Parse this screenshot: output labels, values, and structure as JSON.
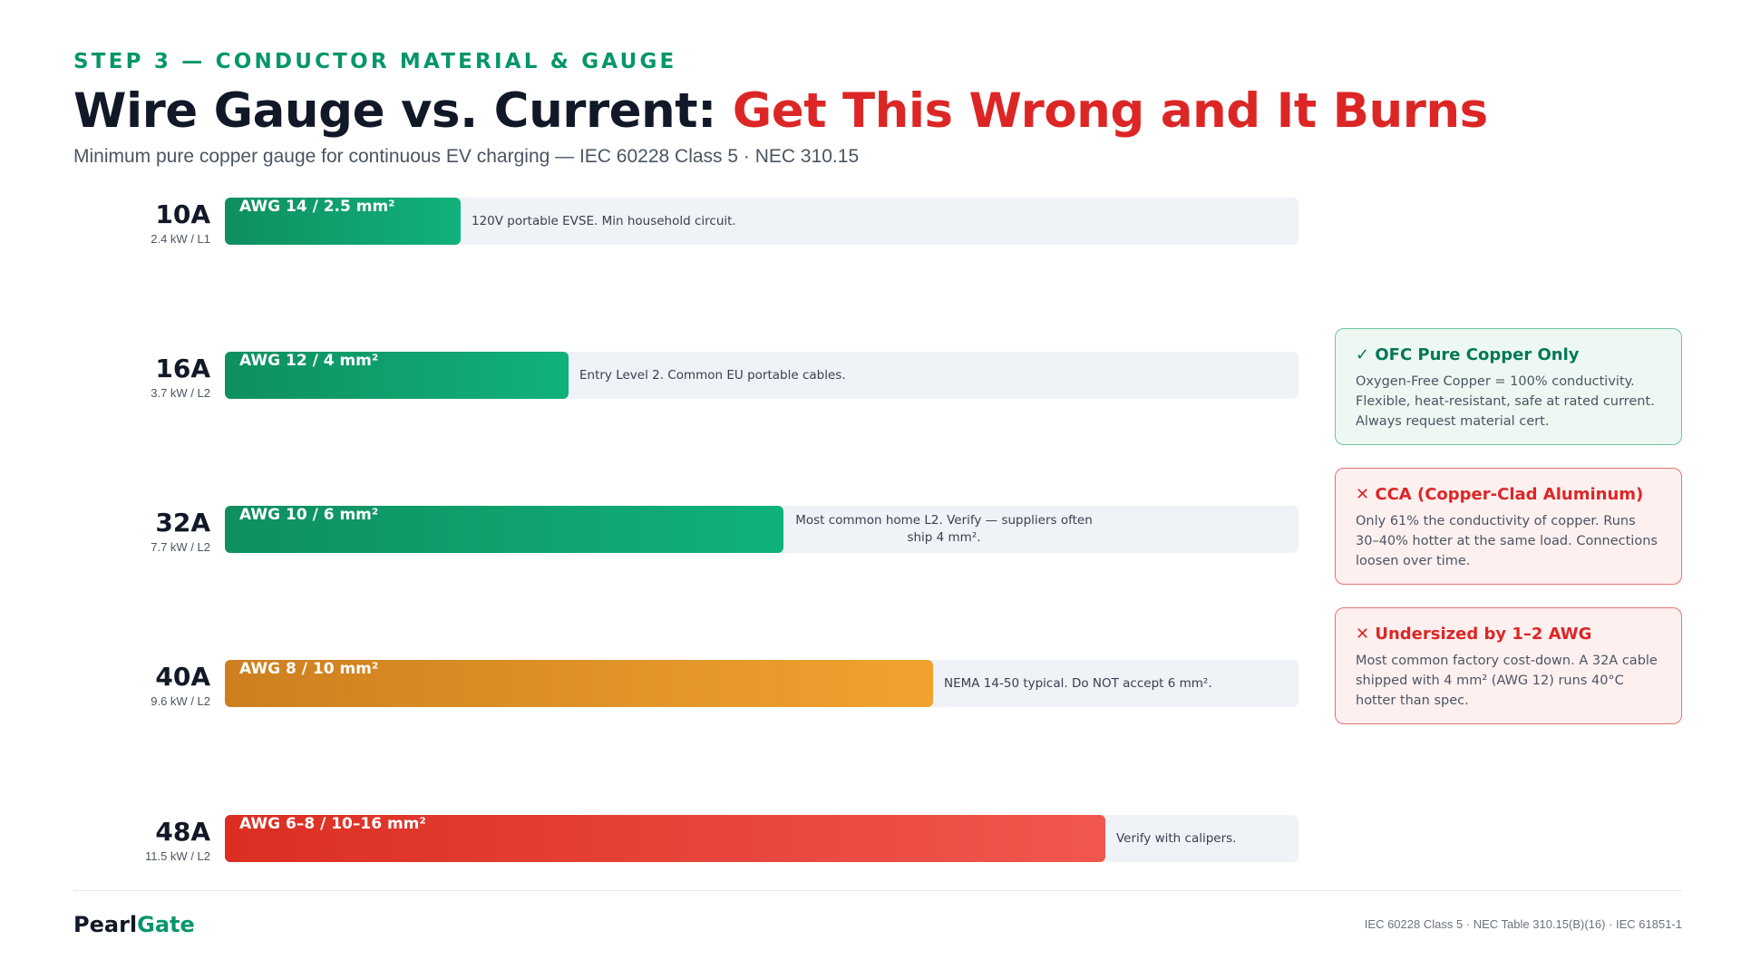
{
  "header": {
    "eyebrow": "STEP 3 — CONDUCTOR MATERIAL & GAUGE",
    "title_main": "Wire Gauge vs. Current: ",
    "title_accent": "Get This Wrong and It Burns",
    "subtitle": "Minimum pure copper gauge for continuous EV charging — IEC 60228 Class 5 · NEC 310.15"
  },
  "chart_data": {
    "type": "bar",
    "orientation": "horizontal",
    "title": "",
    "xlabel": "",
    "ylabel": "",
    "xlim": [
      0,
      10
    ],
    "categories": [
      "10A",
      "16A",
      "32A",
      "40A",
      "48A"
    ],
    "sublabels": [
      "2.4 kW / L1",
      "3.7 kW / L2",
      "7.7 kW / L2",
      "9.6 kW / L2",
      "11.5 kW / L2"
    ],
    "bar_labels": [
      "AWG 14 / 2.5 mm²",
      "AWG 12 / 4 mm²",
      "AWG 10 / 6 mm²",
      "AWG 8 / 10 mm²",
      "AWG 6–8 / 10–16 mm²"
    ],
    "notes": [
      "120V portable EVSE. Min household circuit.",
      "Entry Level 2. Common EU portable cables.",
      "Most common home L2. Verify — suppliers often ship 4 mm².",
      "NEMA 14-50 typical. Do NOT accept 6 mm².",
      "Verify with calipers."
    ],
    "values": [
      2.2,
      3.2,
      5.2,
      6.6,
      8.2
    ],
    "bar_colors": [
      [
        "#0f8f5f",
        "#10b27b"
      ],
      [
        "#0f8f5f",
        "#10b27b"
      ],
      [
        "#0f8f5f",
        "#10b27b"
      ],
      [
        "#cd7f1f",
        "#f0a32f"
      ],
      [
        "#dc2e22",
        "#f0574f"
      ]
    ],
    "legend": "none",
    "grid": false
  },
  "cards": [
    {
      "icon": "check-icon",
      "title": "✓ OFC Pure Copper Only",
      "body": "Oxygen-Free Copper = 100% conductivity. Flexible, heat-resistant, safe at rated current. Always request material cert."
    },
    {
      "icon": "cross-icon",
      "title": "CCA (Copper-Clad Aluminum)",
      "body": "Only 61% the conductivity of copper. Runs 30–40% hotter at the same load. Connections loosen over time."
    },
    {
      "icon": "cross-icon",
      "title": "Undersized by 1–2 AWG",
      "body": "Most common factory cost-down. A 32A cable shipped with 4 mm² (AWG 12) runs 40°C hotter than spec."
    }
  ],
  "footer": {
    "brand_a": "Pearl",
    "brand_b": "Gate",
    "references": "IEC 60228 Class 5 · NEC Table 310.15(B)(16) · IEC 61851-1"
  },
  "colors": {
    "green": "#059669",
    "red": "#dc2626",
    "amber": "#f0a32f"
  }
}
